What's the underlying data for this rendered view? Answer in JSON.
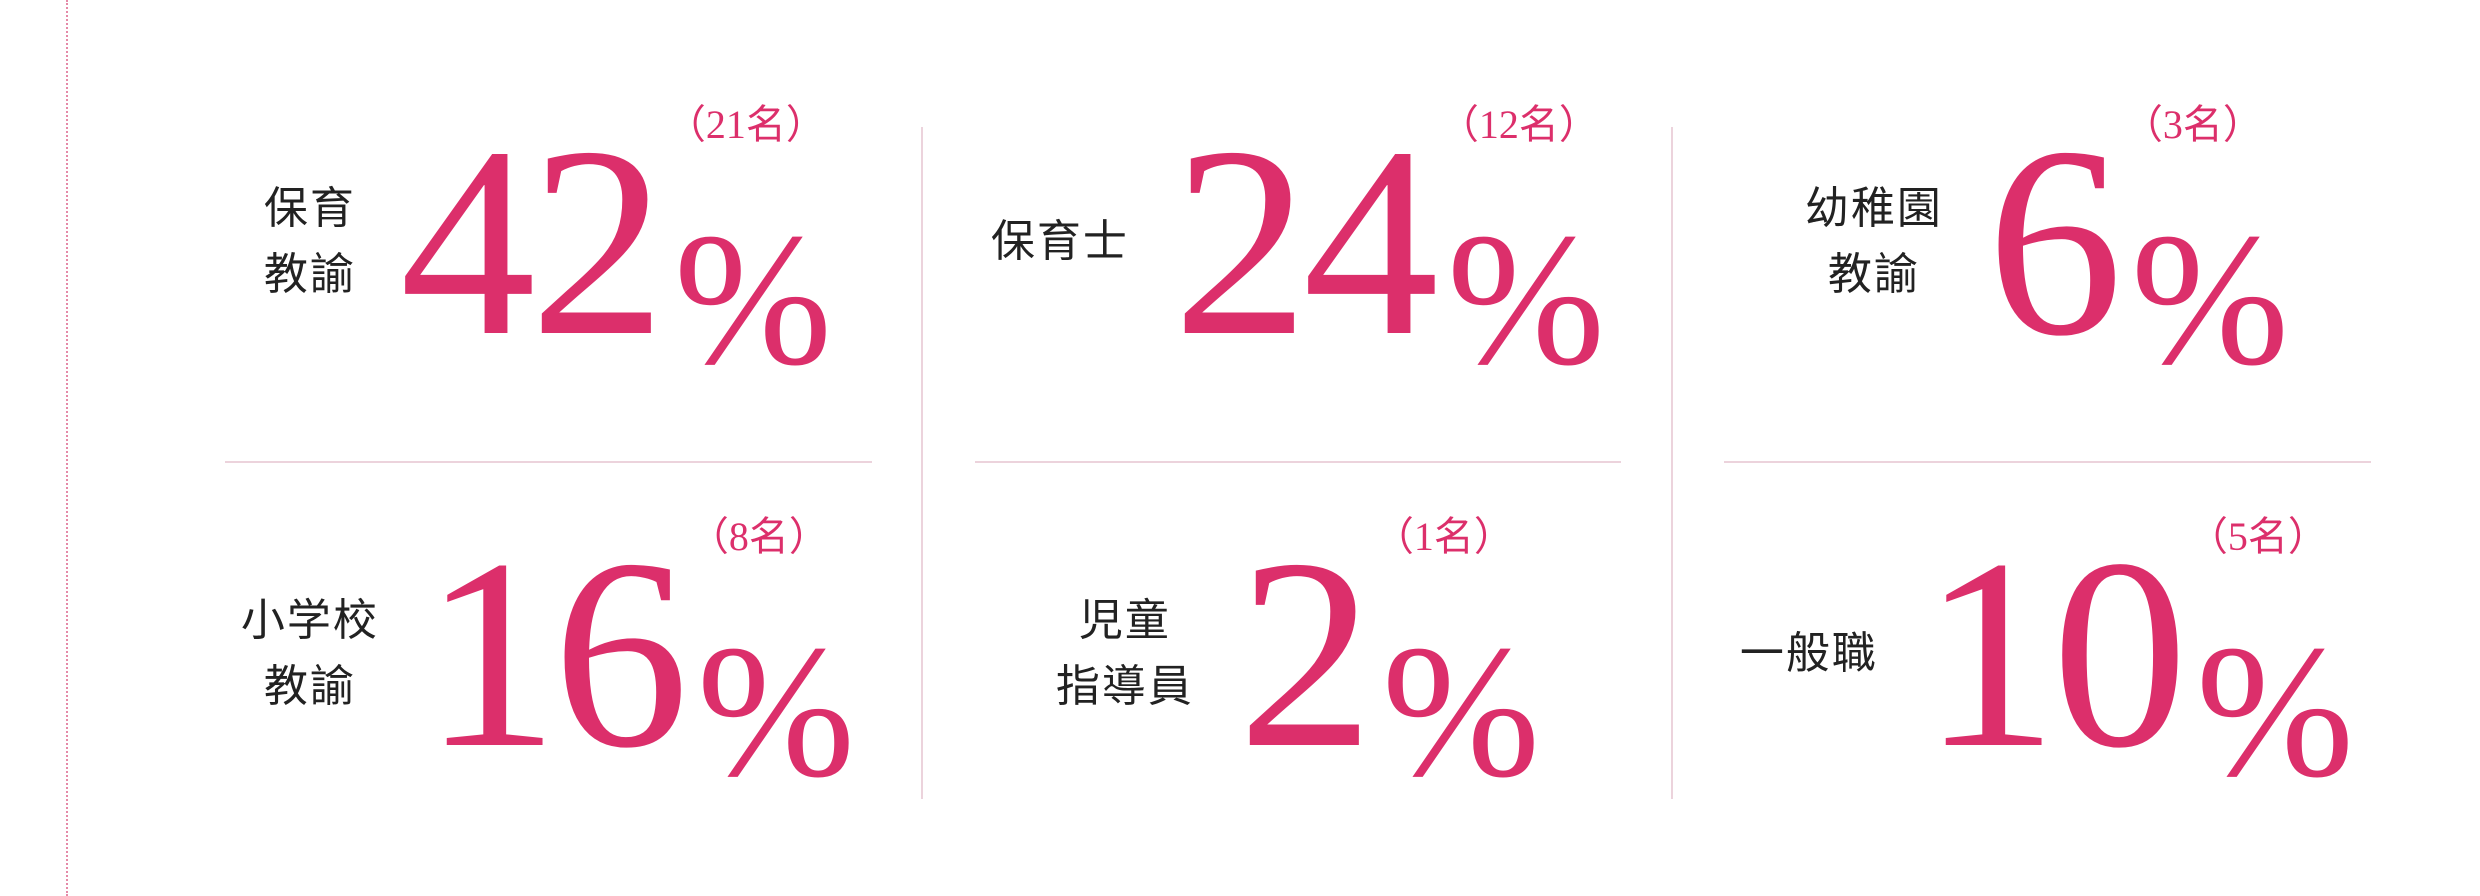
{
  "accent_color": "#dc2f6b",
  "items": [
    {
      "label": "保育\n教諭",
      "value": "42",
      "unit": "%",
      "count": "（21名）"
    },
    {
      "label": "保育士",
      "value": "24",
      "unit": "%",
      "count": "（12名）"
    },
    {
      "label": "幼稚園\n教諭",
      "value": "6",
      "unit": "%",
      "count": "（3名）"
    },
    {
      "label": "小学校\n教諭",
      "value": "16",
      "unit": "%",
      "count": "（8名）"
    },
    {
      "label": "児童\n指導員",
      "value": "2",
      "unit": "%",
      "count": "（1名）"
    },
    {
      "label": "一般職",
      "value": "10",
      "unit": "%",
      "count": "（5名）"
    }
  ]
}
